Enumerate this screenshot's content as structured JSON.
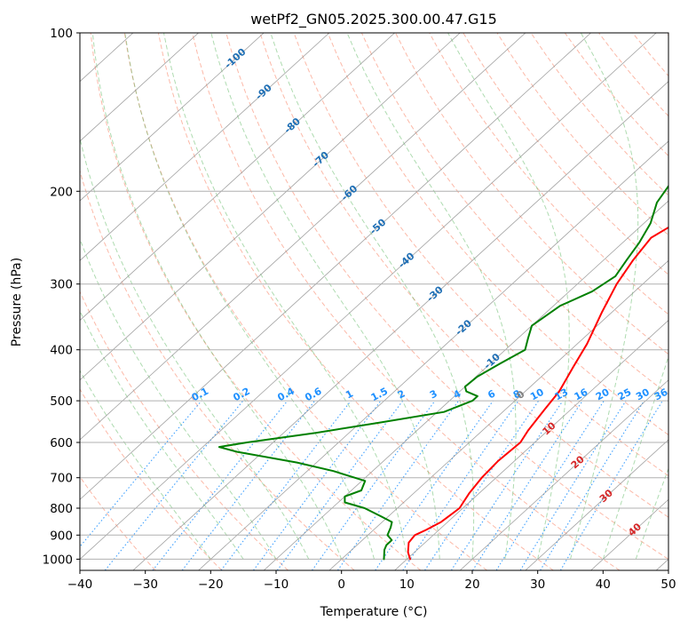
{
  "chart_data": {
    "type": "line",
    "title": "wetPf2_GN05.2025.300.00.47.G15",
    "xlabel": "Temperature (°C)",
    "ylabel": "Pressure (hPa)",
    "xlim": [
      -40,
      50
    ],
    "ylim": [
      1050,
      100
    ],
    "y_scale": "log",
    "grid": true,
    "x_ticks": [
      -40,
      -30,
      -20,
      -10,
      0,
      10,
      20,
      30,
      40,
      50
    ],
    "y_ticks": [
      1000,
      900,
      800,
      700,
      600,
      500,
      400,
      300,
      200,
      100
    ],
    "skew_isotherm_labels": [
      "-100",
      "-90",
      "-80",
      "-70",
      "-60",
      "-50",
      "-40",
      "-30",
      "-20",
      "-10",
      "0",
      "10",
      "20",
      "30",
      "40"
    ],
    "isotherm_label_values": [
      -100,
      -90,
      -80,
      -70,
      -60,
      -50,
      -40,
      -30,
      -20,
      -10,
      0,
      10,
      20,
      30,
      40
    ],
    "mixing_ratio_labels": [
      "0.1",
      "0.2",
      "0.4",
      "0.6",
      "1",
      "1.5",
      "2",
      "3",
      "4",
      "6",
      "8",
      "10",
      "13",
      "16",
      "20",
      "25",
      "30",
      "36"
    ],
    "mixing_ratio_values": [
      0.1,
      0.2,
      0.4,
      0.6,
      1,
      1.5,
      2,
      3,
      4,
      6,
      8,
      10,
      13,
      16,
      20,
      25,
      30,
      36
    ],
    "colors": {
      "temperature": "#ff0000",
      "dewpoint": "#008000",
      "isotherm_label_cold": "#1f6fb5",
      "isotherm_label_zero": "#808080",
      "isotherm_label_warm": "#d62728",
      "mixing_ratio": "#1e90ff",
      "dry_adiabat": "#fa8060",
      "moist_adiabat": "#4caf50",
      "grid": "#b0b0b0"
    },
    "series": [
      {
        "name": "",
        "role": "temperature",
        "points": [
          [
            10.5,
            1000
          ],
          [
            9.0,
            970
          ],
          [
            7.5,
            930
          ],
          [
            7.2,
            900
          ],
          [
            8.0,
            880
          ],
          [
            9.0,
            850
          ],
          [
            9.5,
            800
          ],
          [
            8.5,
            750
          ],
          [
            7.8,
            700
          ],
          [
            7.5,
            650
          ],
          [
            7.8,
            600
          ],
          [
            7.0,
            570
          ],
          [
            6.0,
            520
          ],
          [
            5.2,
            480
          ],
          [
            3.2,
            430
          ],
          [
            1.5,
            390
          ],
          [
            -1.5,
            340
          ],
          [
            -4.0,
            300
          ],
          [
            -5.5,
            270
          ],
          [
            -6.5,
            245
          ],
          [
            -5.0,
            228
          ],
          [
            -2.0,
            212
          ],
          [
            1.0,
            198
          ],
          [
            3.5,
            184
          ],
          [
            6.0,
            170
          ],
          [
            8.5,
            155
          ],
          [
            10.5,
            140
          ],
          [
            13.0,
            128
          ],
          [
            16.0,
            118
          ],
          [
            19.0,
            112
          ],
          [
            20.5,
            106
          ],
          [
            21.5,
            100
          ]
        ]
      },
      {
        "name": "",
        "role": "dewpoint",
        "points": [
          [
            6.5,
            1000
          ],
          [
            5.0,
            960
          ],
          [
            4.5,
            940
          ],
          [
            4.5,
            920
          ],
          [
            3.0,
            900
          ],
          [
            2.2,
            870
          ],
          [
            1.5,
            850
          ],
          [
            -1.0,
            830
          ],
          [
            -5.0,
            800
          ],
          [
            -9.0,
            780
          ],
          [
            -10.0,
            760
          ],
          [
            -8.5,
            740
          ],
          [
            -9.5,
            710
          ],
          [
            -16.0,
            680
          ],
          [
            -23.0,
            655
          ],
          [
            -34.0,
            625
          ],
          [
            -37.5,
            612
          ],
          [
            -34.0,
            600
          ],
          [
            -25.0,
            575
          ],
          [
            -17.0,
            550
          ],
          [
            -9.0,
            525
          ],
          [
            -6.5,
            500
          ],
          [
            -6.5,
            490
          ],
          [
            -9.0,
            480
          ],
          [
            -10.0,
            470
          ],
          [
            -9.8,
            450
          ],
          [
            -8.5,
            425
          ],
          [
            -7.0,
            400
          ],
          [
            -8.5,
            380
          ],
          [
            -10.0,
            360
          ],
          [
            -9.0,
            330
          ],
          [
            -6.5,
            310
          ],
          [
            -5.5,
            290
          ],
          [
            -6.5,
            270
          ],
          [
            -7.5,
            250
          ],
          [
            -9.0,
            230
          ],
          [
            -11.5,
            210
          ],
          [
            -12.5,
            195
          ],
          [
            -11.0,
            185
          ],
          [
            -9.5,
            175
          ],
          [
            -9.0,
            165
          ],
          [
            -10.0,
            155
          ],
          [
            -9.5,
            145
          ],
          [
            -8.0,
            135
          ],
          [
            -6.5,
            125
          ],
          [
            -4.5,
            115
          ],
          [
            -2.5,
            107
          ],
          [
            -0.5,
            100
          ]
        ]
      }
    ]
  }
}
